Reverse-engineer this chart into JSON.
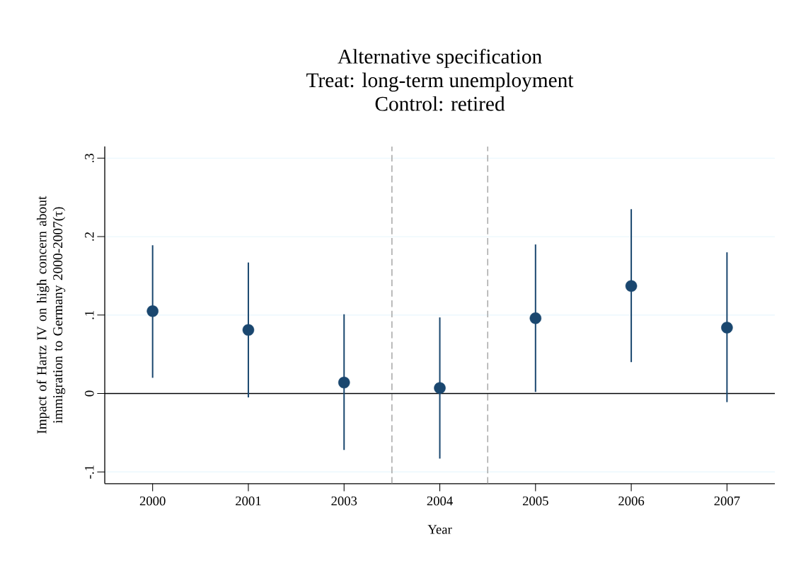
{
  "chart_data": {
    "type": "scatter",
    "title": "Alternative specification",
    "subtitle": "Treat: long-term unemployment",
    "annotations": [
      "Control: retired"
    ],
    "xlabel": "Year",
    "ylabel": "Impact of Hartz IV on high concern about immigration to Germany 2000-2007(τ)",
    "categories": [
      "2000",
      "2001",
      "2003",
      "2004",
      "2005",
      "2006",
      "2007"
    ],
    "series": [
      {
        "color": "#1a476f",
        "values": [
          0.105,
          0.081,
          0.014,
          0.007,
          0.096,
          0.137,
          0.084
        ],
        "errors": [
          [
            0.02,
            0.189
          ],
          [
            -0.005,
            0.167
          ],
          [
            -0.072,
            0.101
          ],
          [
            -0.083,
            0.097
          ],
          [
            0.002,
            0.19
          ],
          [
            0.04,
            0.235
          ],
          [
            -0.011,
            0.18
          ]
        ]
      }
    ],
    "ylim": [
      -0.115,
      0.315
    ],
    "yticks": [
      {
        "value": -0.1,
        "label": "-.1"
      },
      {
        "value": 0,
        "label": "0"
      },
      {
        "value": 0.1,
        "label": ".1"
      },
      {
        "value": 0.2,
        "label": ".2"
      },
      {
        "value": 0.3,
        "label": ".3"
      }
    ],
    "ref_lines": [
      {
        "axis": "y",
        "value": 0,
        "color": "#000000",
        "line_style": "solid"
      }
    ],
    "grid": "y",
    "marker": "circle"
  }
}
